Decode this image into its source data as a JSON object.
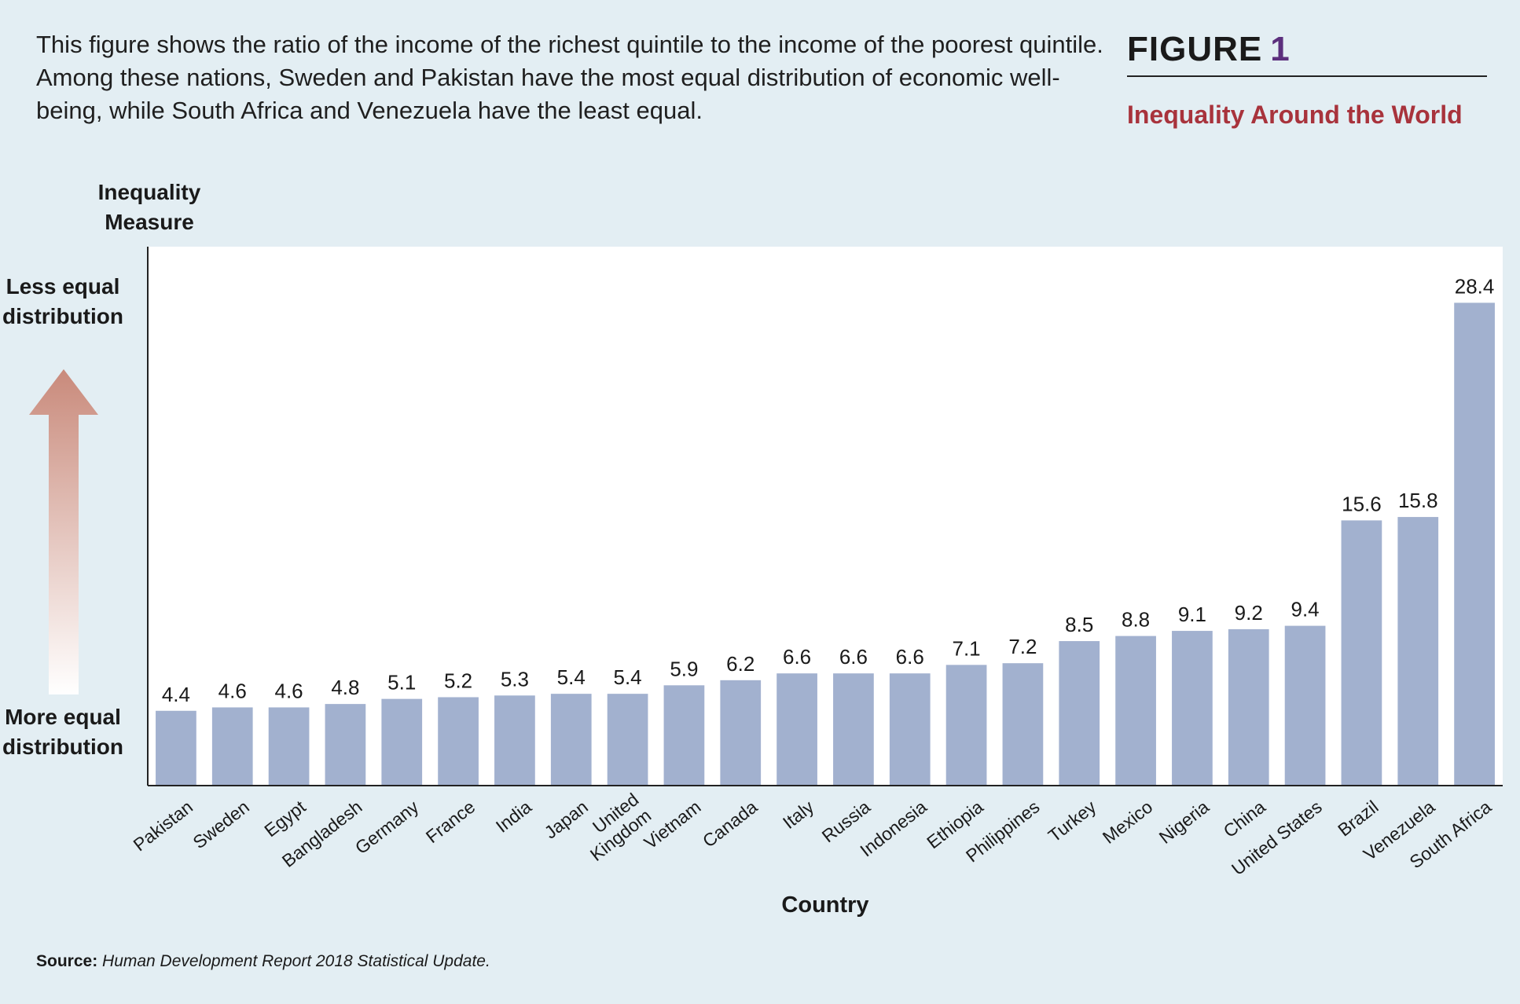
{
  "description": "This figure shows the ratio of the income of the richest quintile to the income of the poorest quintile. Among these nations, Sweden and Pakistan have the most equal distribution of economic well-being, while South Africa and Venezuela have the least equal.",
  "figure": {
    "label": "FIGURE",
    "number": "1"
  },
  "arrow": {
    "top_text": "Less equal distribution",
    "bottom_text": "More equal distribution",
    "top_color": "#c98a7b",
    "bottom_color": "#ffffff"
  },
  "source": {
    "label": "Source:",
    "text": "Human Development Report 2018 Statistical Update."
  },
  "colors": {
    "bar": "#a2b1cf",
    "plot_bg": "#ffffff",
    "page_bg": "#e3eef3",
    "subtitle": "#a8333c",
    "figure_number": "#5c2f7d"
  },
  "chart_data": {
    "type": "bar",
    "title": "Inequality Around the World",
    "xlabel": "Country",
    "ylabel": "Inequality Measure",
    "ylim": [
      0,
      31.7
    ],
    "grid": false,
    "categories": [
      "Pakistan",
      "Sweden",
      "Egypt",
      "Bangladesh",
      "Germany",
      "France",
      "India",
      "Japan",
      "United Kingdom",
      "Vietnam",
      "Canada",
      "Italy",
      "Russia",
      "Indonesia",
      "Ethiopia",
      "Philippines",
      "Turkey",
      "Mexico",
      "Nigeria",
      "China",
      "United States",
      "Brazil",
      "Venezuela",
      "South Africa"
    ],
    "values": [
      4.4,
      4.6,
      4.6,
      4.8,
      5.1,
      5.2,
      5.3,
      5.4,
      5.4,
      5.9,
      6.2,
      6.6,
      6.6,
      6.6,
      7.1,
      7.2,
      8.5,
      8.8,
      9.1,
      9.2,
      9.4,
      15.6,
      15.8,
      28.4
    ],
    "data_labels": [
      "4.4",
      "4.6",
      "4.6",
      "4.8",
      "5.1",
      "5.2",
      "5.3",
      "5.4",
      "5.4",
      "5.9",
      "6.2",
      "6.6",
      "6.6",
      "6.6",
      "7.1",
      "7.2",
      "8.5",
      "8.8",
      "9.1",
      "9.2",
      "9.4",
      "15.6",
      "15.8",
      "28.4"
    ]
  }
}
